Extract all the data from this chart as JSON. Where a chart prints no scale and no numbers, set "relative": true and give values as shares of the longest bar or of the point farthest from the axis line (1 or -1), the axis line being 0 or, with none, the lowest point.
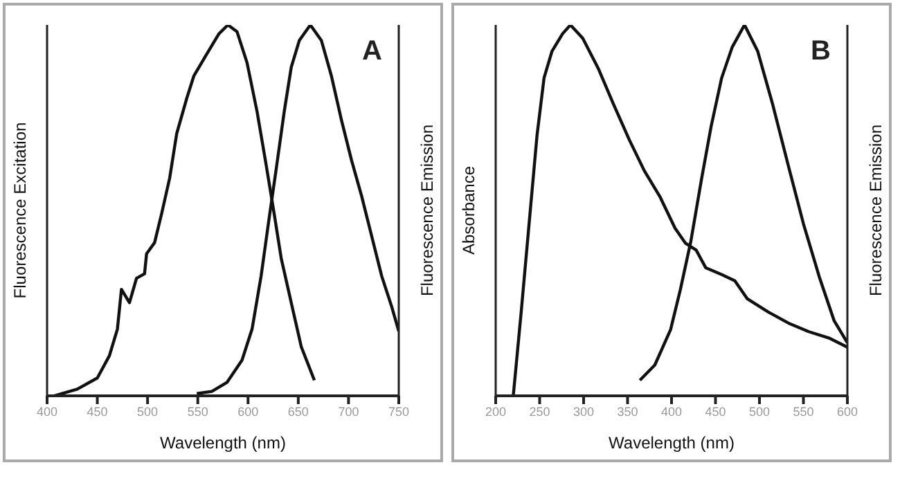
{
  "chart_data": [
    {
      "type": "line",
      "relative": true,
      "xlabel": "Wavelength (nm)",
      "ylabel": "Fluorescence Excitation",
      "y2label": "Fluorescence Emission",
      "annotations": [
        "A"
      ],
      "xlim": [
        400,
        750
      ],
      "xticks": [
        400,
        450,
        500,
        550,
        600,
        650,
        700,
        750
      ],
      "tick_labels": "x",
      "grid": false,
      "legend": false,
      "marker": "none",
      "line_style": "solid",
      "series": [
        {
          "color": "#111111",
          "x": [
            407,
            430,
            450,
            462,
            470,
            474,
            482,
            489,
            497,
            499,
            507,
            514,
            522,
            529,
            539,
            546,
            559,
            571,
            580,
            589,
            599,
            609,
            618,
            626,
            633,
            643,
            653,
            666
          ],
          "values": [
            0,
            0.018,
            0.048,
            0.108,
            0.18,
            0.287,
            0.251,
            0.317,
            0.329,
            0.383,
            0.413,
            0.491,
            0.587,
            0.707,
            0.802,
            0.862,
            0.922,
            0.976,
            1,
            0.982,
            0.898,
            0.766,
            0.623,
            0.491,
            0.371,
            0.251,
            0.132,
            0.042
          ]
        },
        {
          "color": "#111111",
          "x": [
            549,
            564,
            579,
            594,
            604,
            613,
            621,
            628,
            636,
            643,
            651,
            662,
            673,
            683,
            693,
            703,
            713,
            723,
            733,
            743,
            750
          ],
          "values": [
            0.006,
            0.012,
            0.036,
            0.096,
            0.18,
            0.323,
            0.479,
            0.611,
            0.766,
            0.886,
            0.958,
            1,
            0.958,
            0.862,
            0.743,
            0.635,
            0.539,
            0.431,
            0.323,
            0.24,
            0.174
          ]
        }
      ]
    },
    {
      "type": "line",
      "relative": true,
      "xlabel": "Wavelength (nm)",
      "ylabel": "Absorbance",
      "y2label": "Fluorescence Emission",
      "annotations": [
        "B"
      ],
      "xlim": [
        200,
        600
      ],
      "xticks": [
        200,
        250,
        300,
        350,
        400,
        450,
        500,
        550,
        600
      ],
      "tick_labels": "x",
      "grid": false,
      "legend": false,
      "marker": "none",
      "line_style": "solid",
      "series": [
        {
          "color": "#111111",
          "x": [
            220,
            229,
            238,
            247,
            255,
            264,
            276,
            285,
            299,
            317,
            334,
            352,
            369,
            387,
            404,
            416,
            428,
            439,
            457,
            472,
            486,
            510,
            533,
            556,
            580,
            600
          ],
          "values": [
            0,
            0.226,
            0.464,
            0.702,
            0.857,
            0.929,
            0.976,
            1,
            0.964,
            0.881,
            0.786,
            0.69,
            0.607,
            0.536,
            0.452,
            0.411,
            0.393,
            0.345,
            0.327,
            0.31,
            0.262,
            0.226,
            0.196,
            0.173,
            0.155,
            0.131
          ]
        },
        {
          "color": "#111111",
          "x": [
            364,
            381,
            399,
            410,
            422,
            434,
            445,
            457,
            469,
            483,
            498,
            515,
            533,
            550,
            568,
            585,
            600
          ],
          "values": [
            0.042,
            0.083,
            0.179,
            0.286,
            0.417,
            0.583,
            0.726,
            0.857,
            0.94,
            1,
            0.929,
            0.786,
            0.619,
            0.464,
            0.321,
            0.202,
            0.143
          ]
        }
      ]
    }
  ]
}
